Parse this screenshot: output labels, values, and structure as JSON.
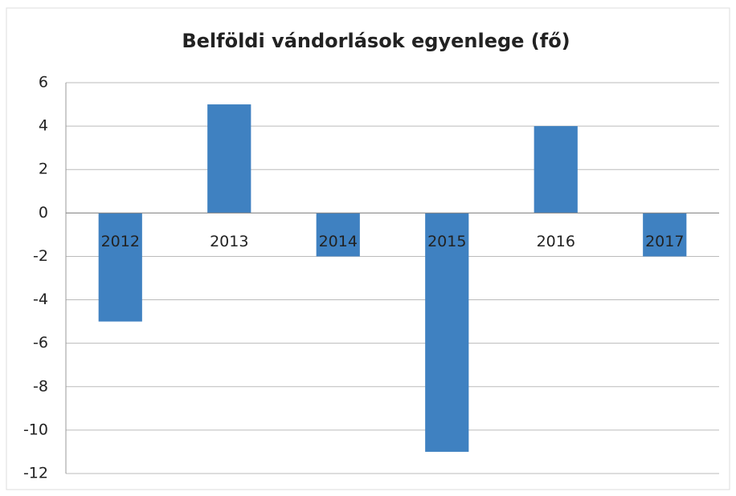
{
  "chart_data": {
    "type": "bar",
    "title": "Belföldi vándorlások egyenlege (fő)",
    "categories": [
      "2012",
      "2013",
      "2014",
      "2015",
      "2016",
      "2017"
    ],
    "values": [
      -5,
      5,
      -2,
      -11,
      4,
      -2
    ],
    "color": "#3f81c1",
    "ylim": [
      -12,
      6
    ],
    "yticks": [
      -12,
      -10,
      -8,
      -6,
      -4,
      -2,
      0,
      2,
      4,
      6
    ],
    "grid": true
  }
}
